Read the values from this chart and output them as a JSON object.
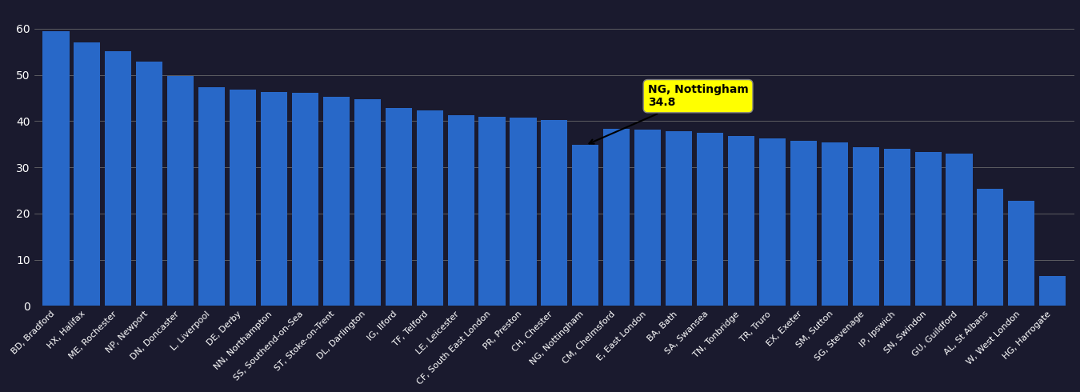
{
  "categories": [
    "BD, Bradford",
    "HX, Halifax",
    "ME, Rochester",
    "NP, Newport",
    "DN, Doncaster",
    "L, Liverpool",
    "DE, Derby",
    "NN, Northampton",
    "SS, Southend-on-Sea",
    "ST, Stoke-on-Trent",
    "DL, Darlington",
    "IG, Ilford",
    "TF, Telford",
    "LE, Leicester",
    "CF, South East London",
    "PR, Preston",
    "CH, Chester",
    "NG, Nottingham",
    "CM, Chelmsford",
    "E, East London",
    "BA, Bath",
    "SA, Swansea",
    "TN, Tonbridge",
    "TR, Truro",
    "EX, Exeter",
    "SM, Sutton",
    "SG, Stevenage",
    "IP, Ipswich",
    "SN, Swindon",
    "GU, Guildford",
    "AL, St Albans",
    "W, West London",
    "HG, Harrogate"
  ],
  "values": [
    59.5,
    57.0,
    55.2,
    52.8,
    49.8,
    47.3,
    46.8,
    46.3,
    46.1,
    45.2,
    44.8,
    42.8,
    42.3,
    41.2,
    41.0,
    40.7,
    40.2,
    34.8,
    38.4,
    38.1,
    37.8,
    37.4,
    36.8,
    36.2,
    35.8,
    35.3,
    34.3,
    34.0,
    33.3,
    32.9,
    25.3,
    22.8,
    6.5
  ],
  "highlight_idx": 17,
  "highlight_label_line1": "NG, Nottingham",
  "highlight_label_line2": "34.8",
  "bar_color": "#2868c8",
  "background_color": "#1a1a2e",
  "grid_color": "#777777",
  "text_color": "#ffffff",
  "ylim": [
    0,
    65
  ],
  "yticks": [
    0,
    10,
    20,
    30,
    40,
    50,
    60
  ]
}
